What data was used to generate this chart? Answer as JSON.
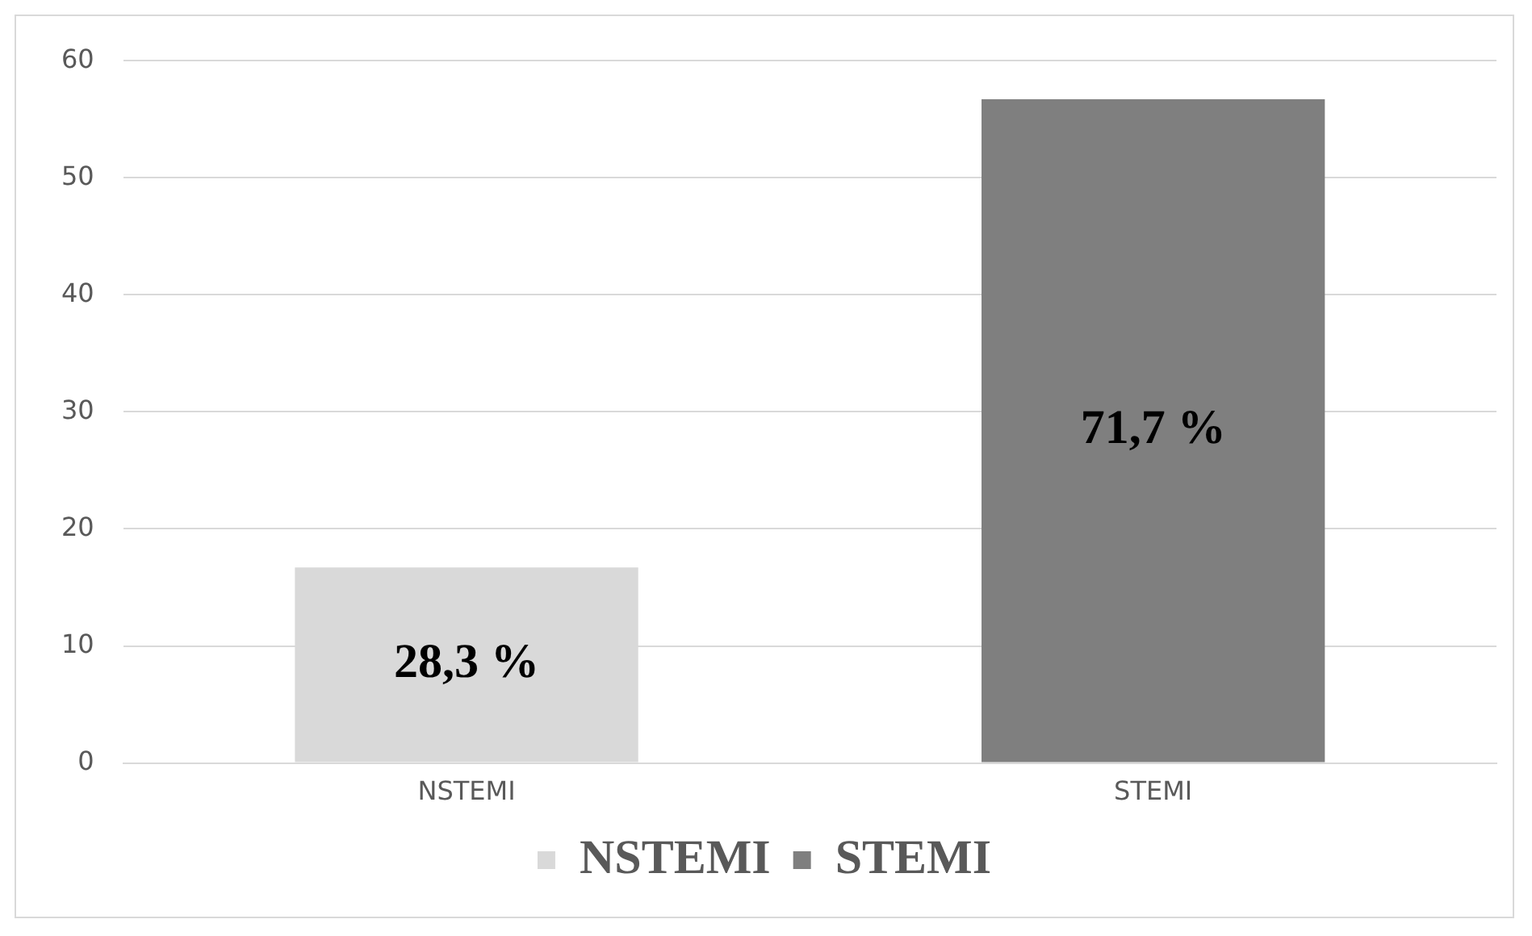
{
  "chart_data": {
    "type": "bar",
    "categories": [
      "NSTEMI",
      "STEMI"
    ],
    "series": [
      {
        "name": "NSTEMI",
        "color": "#d9d9d9",
        "values": [
          16.7,
          null
        ]
      },
      {
        "name": "STEMI",
        "color": "#7f7f7f",
        "values": [
          null,
          56.7
        ]
      }
    ],
    "annotations": [
      "28,3 %",
      "71,7 %"
    ],
    "ylim": [
      0,
      60
    ],
    "yticks": [
      0,
      10,
      20,
      30,
      40,
      50,
      60
    ],
    "grid": "y",
    "legend": "bottom"
  }
}
